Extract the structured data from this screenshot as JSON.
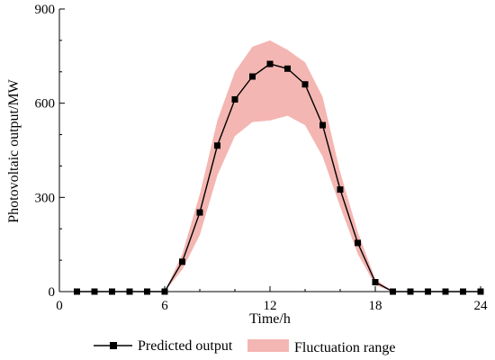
{
  "chart_data": {
    "type": "line",
    "xlabel": "Time/h",
    "ylabel": "Photovoltaic output/MW",
    "xlim": [
      0,
      24
    ],
    "ylim": [
      0,
      900
    ],
    "xticks": [
      0,
      6,
      12,
      18,
      24
    ],
    "yticks": [
      0,
      300,
      600,
      900
    ],
    "xtick_labels": [
      "0",
      "6",
      "12",
      "18",
      "24"
    ],
    "ytick_labels": [
      "0",
      "300",
      "600",
      "900"
    ],
    "grid": false,
    "legend_position": "bottom",
    "series": [
      {
        "name": "Predicted output",
        "style": "line-with-square-markers",
        "color": "#000000",
        "x": [
          1,
          2,
          3,
          4,
          5,
          6,
          7,
          8,
          9,
          10,
          11,
          12,
          13,
          14,
          15,
          16,
          17,
          18,
          19,
          20,
          21,
          22,
          23,
          24
        ],
        "y": [
          0,
          0,
          0,
          0,
          0,
          0,
          95,
          252,
          465,
          612,
          685,
          725,
          710,
          660,
          530,
          325,
          155,
          30,
          0,
          0,
          0,
          0,
          0,
          0
        ]
      }
    ],
    "band": {
      "name": "Fluctuation range",
      "color": "#f4b6b2",
      "x": [
        6,
        7,
        8,
        9,
        10,
        11,
        12,
        13,
        14,
        15,
        16,
        17,
        18,
        19
      ],
      "lower": [
        0,
        70,
        180,
        370,
        495,
        540,
        545,
        560,
        530,
        430,
        270,
        120,
        20,
        0
      ],
      "upper": [
        0,
        120,
        310,
        545,
        700,
        780,
        800,
        770,
        730,
        620,
        380,
        190,
        40,
        0
      ]
    }
  }
}
